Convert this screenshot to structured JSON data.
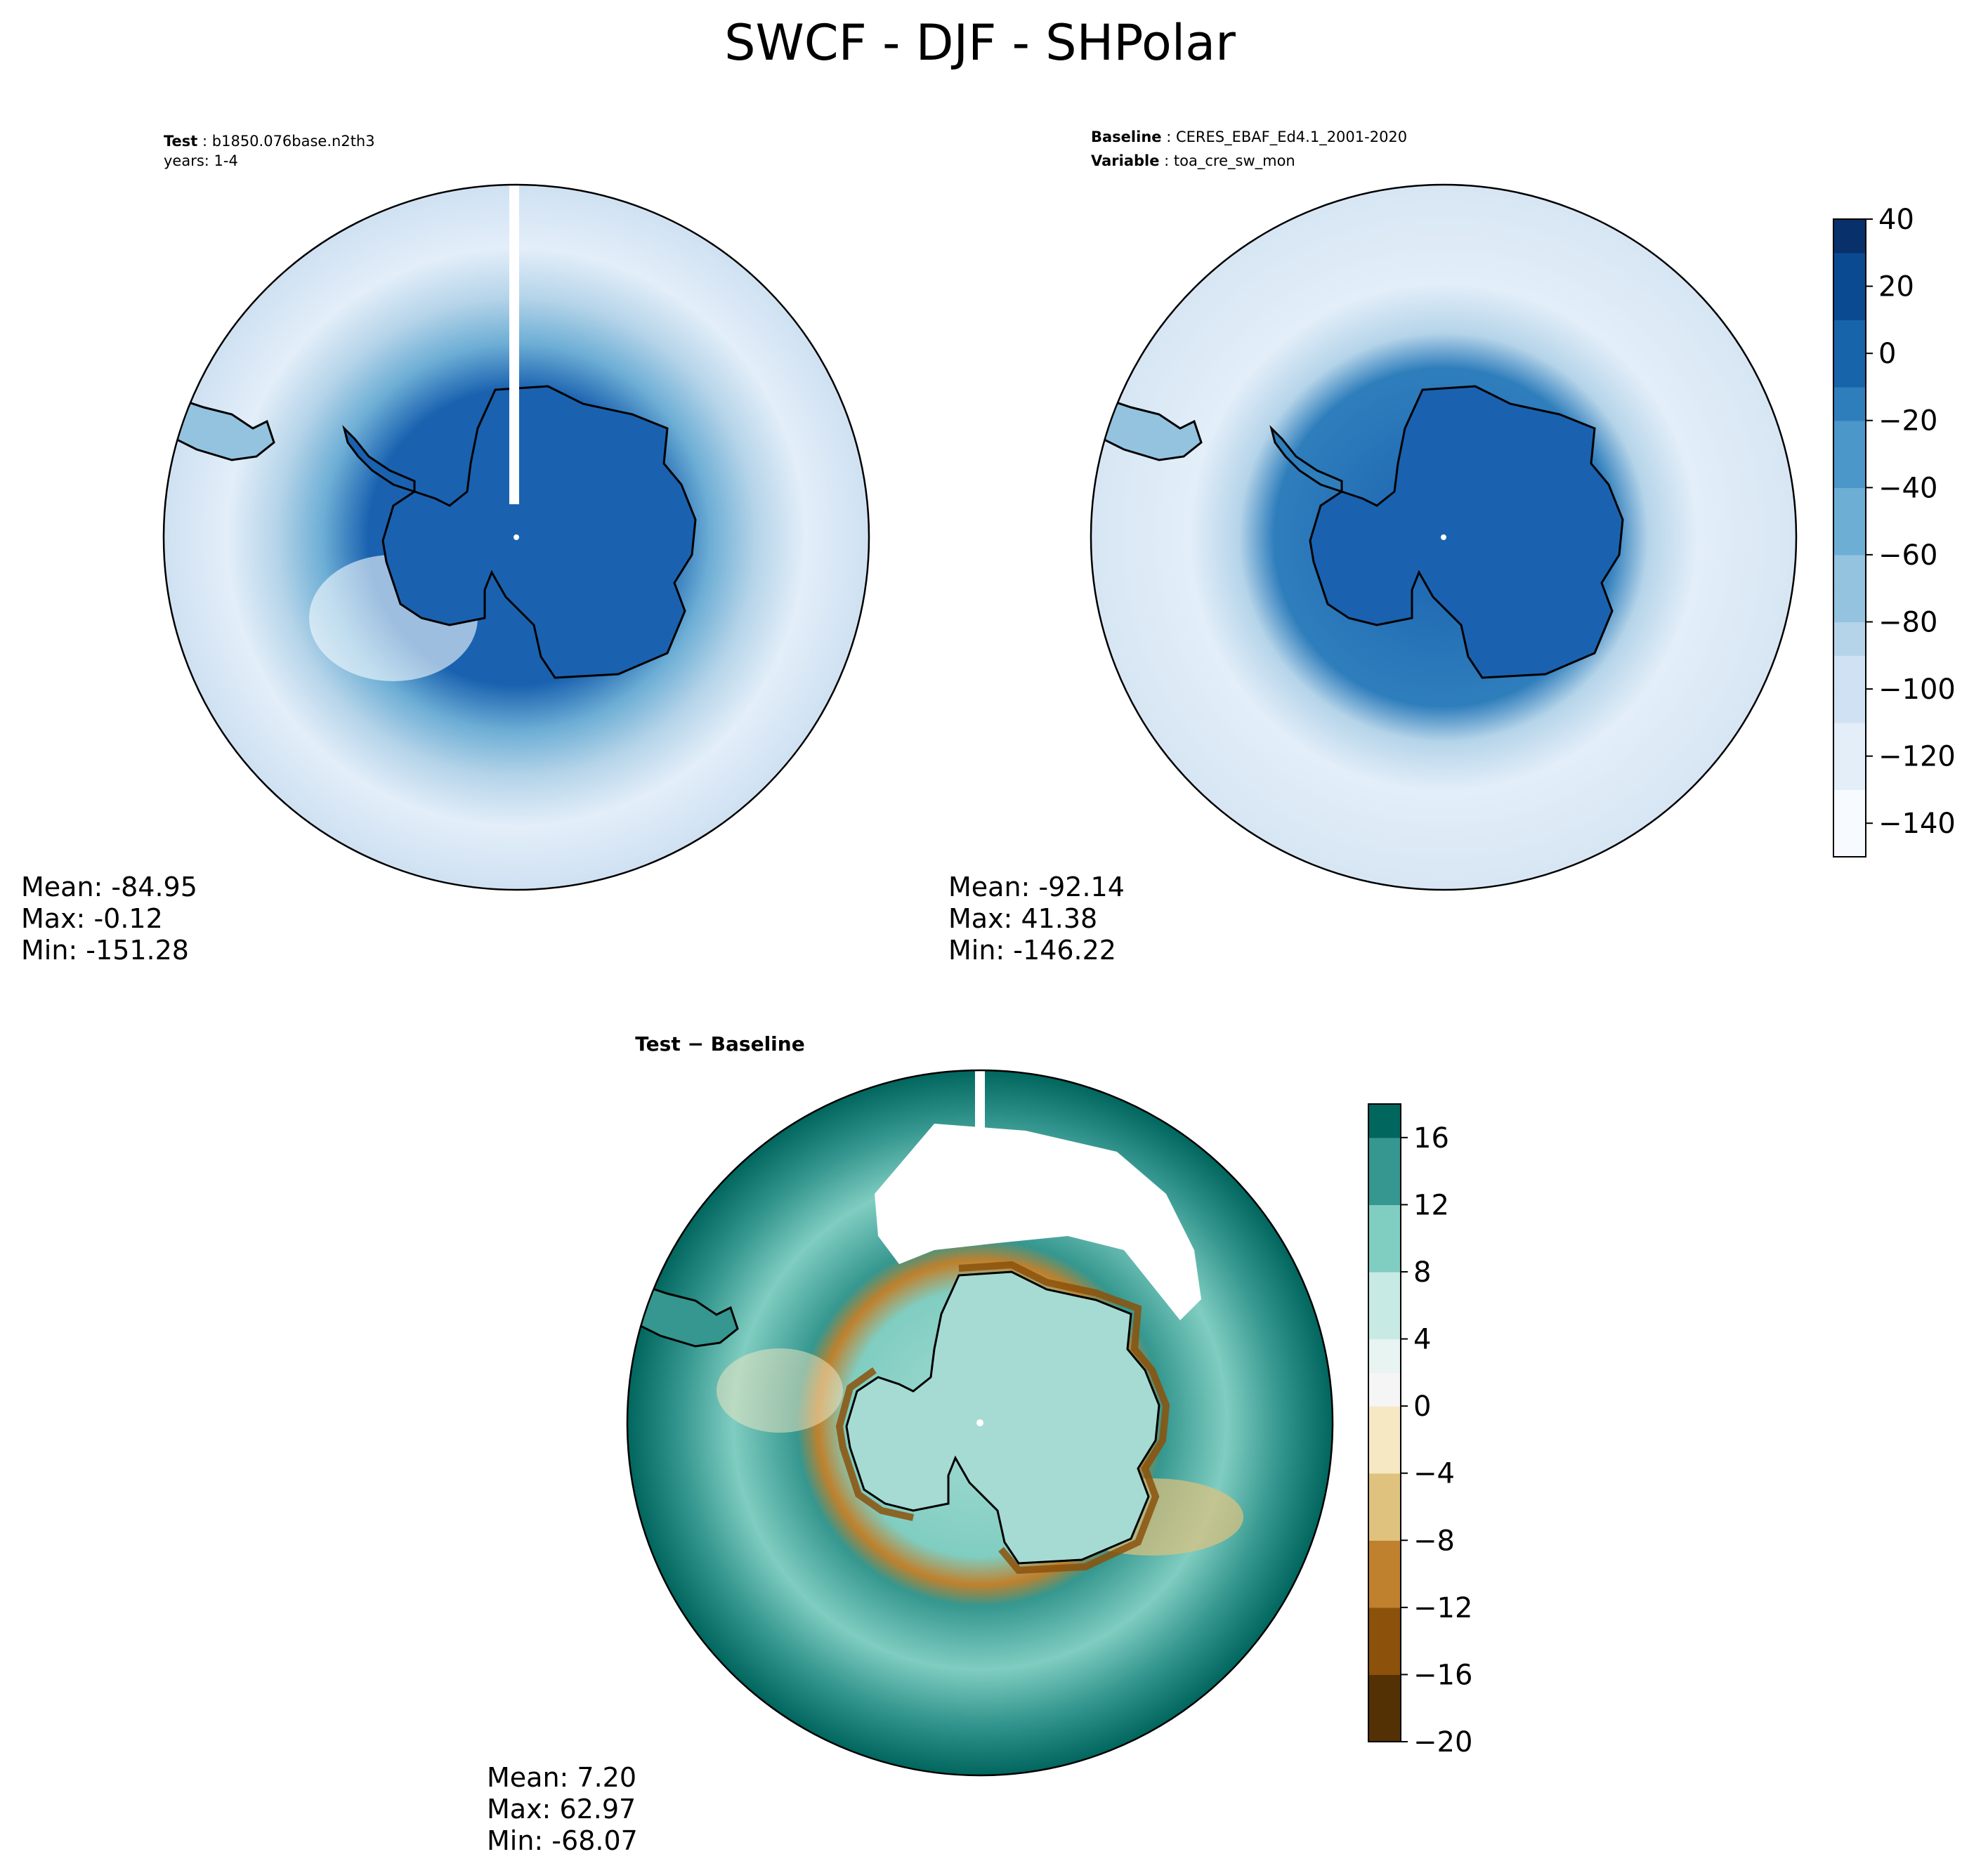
{
  "figure_title": "SWCF - DJF - SHPolar",
  "panels": {
    "test": {
      "label_key": "Test",
      "label_value": "b1850.076base.n2th3",
      "subtitle": "years: 1-4",
      "mean": "Mean: -84.95",
      "max": "Max: -0.12",
      "min": "Min: -151.28"
    },
    "baseline": {
      "label_key": "Baseline",
      "label_value": "CERES_EBAF_Ed4.1_2001-2020",
      "var_key": "Variable",
      "var_value": "toa_cre_sw_mon",
      "mean": "Mean: -92.14",
      "max": "Max: 41.38",
      "min": "Min: -146.22"
    },
    "diff": {
      "title": "Test − Baseline",
      "mean": "Mean:  7.20",
      "max": "Max: 62.97",
      "min": "Min: -68.07"
    }
  },
  "colors": {
    "blues": [
      "#f7fbff",
      "#e3eef9",
      "#cfe1f2",
      "#b5d4e9",
      "#93c3df",
      "#6daed5",
      "#4b97c9",
      "#2f7ebc",
      "#1864aa",
      "#0a4a90",
      "#08306b"
    ],
    "brbg_low": [
      "#543005",
      "#8c510a",
      "#bf812d",
      "#dfc27d",
      "#f6e8c3"
    ],
    "brbg_high": [
      "#c7eae5",
      "#80cdc1",
      "#35978f",
      "#01665e",
      "#003c30"
    ],
    "continent": "#1a62b0",
    "coastline": "#000000"
  },
  "chart_data": [
    {
      "type": "heatmap",
      "name": "Test",
      "projection": "south polar stereographic",
      "variable": "SWCF",
      "season": "DJF",
      "stats": {
        "mean": -84.95,
        "max": -0.12,
        "min": -151.28
      },
      "colorbar": {
        "shared_with": "Baseline"
      }
    },
    {
      "type": "heatmap",
      "name": "Baseline",
      "projection": "south polar stereographic",
      "stats": {
        "mean": -92.14,
        "max": 41.38,
        "min": -146.22
      },
      "colorbar": {
        "range": [
          -150,
          40
        ],
        "ticks": [
          "40",
          "20",
          "0",
          "−20",
          "−40",
          "−60",
          "−80",
          "−100",
          "−120",
          "−140"
        ],
        "tick_values": [
          40,
          20,
          0,
          -20,
          -40,
          -60,
          -80,
          -100,
          -120,
          -140
        ],
        "colormap": "Blues"
      }
    },
    {
      "type": "heatmap",
      "name": "Test − Baseline",
      "projection": "south polar stereographic",
      "stats": {
        "mean": 7.2,
        "max": 62.97,
        "min": -68.07
      },
      "colorbar": {
        "range": [
          -20,
          18
        ],
        "ticks": [
          "16",
          "12",
          "8",
          "4",
          "0",
          "−4",
          "−8",
          "−12",
          "−16",
          "−20"
        ],
        "tick_values": [
          16,
          12,
          8,
          4,
          0,
          -4,
          -8,
          -12,
          -16,
          -20
        ],
        "colormap": "BrBG"
      }
    }
  ]
}
